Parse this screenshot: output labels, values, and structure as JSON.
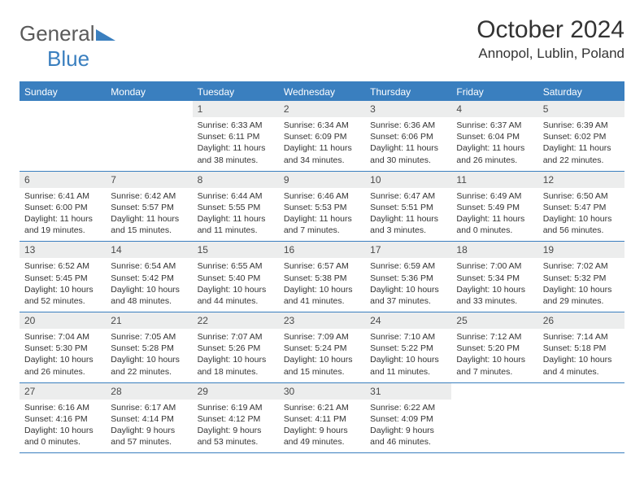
{
  "brand": {
    "part1": "General",
    "part2": "Blue"
  },
  "title": "October 2024",
  "location": "Annopol, Lublin, Poland",
  "colors": {
    "accent": "#3a7fbf",
    "header_row_bg": "#3a7fbf",
    "header_row_text": "#ffffff",
    "daynum_bg": "#eceded",
    "text": "#333333",
    "logo_gray": "#5a5a5a"
  },
  "day_labels": [
    "Sunday",
    "Monday",
    "Tuesday",
    "Wednesday",
    "Thursday",
    "Friday",
    "Saturday"
  ],
  "weeks": [
    [
      null,
      null,
      {
        "n": "1",
        "sr": "6:33 AM",
        "ss": "6:11 PM",
        "dl": "11 hours and 38 minutes."
      },
      {
        "n": "2",
        "sr": "6:34 AM",
        "ss": "6:09 PM",
        "dl": "11 hours and 34 minutes."
      },
      {
        "n": "3",
        "sr": "6:36 AM",
        "ss": "6:06 PM",
        "dl": "11 hours and 30 minutes."
      },
      {
        "n": "4",
        "sr": "6:37 AM",
        "ss": "6:04 PM",
        "dl": "11 hours and 26 minutes."
      },
      {
        "n": "5",
        "sr": "6:39 AM",
        "ss": "6:02 PM",
        "dl": "11 hours and 22 minutes."
      }
    ],
    [
      {
        "n": "6",
        "sr": "6:41 AM",
        "ss": "6:00 PM",
        "dl": "11 hours and 19 minutes."
      },
      {
        "n": "7",
        "sr": "6:42 AM",
        "ss": "5:57 PM",
        "dl": "11 hours and 15 minutes."
      },
      {
        "n": "8",
        "sr": "6:44 AM",
        "ss": "5:55 PM",
        "dl": "11 hours and 11 minutes."
      },
      {
        "n": "9",
        "sr": "6:46 AM",
        "ss": "5:53 PM",
        "dl": "11 hours and 7 minutes."
      },
      {
        "n": "10",
        "sr": "6:47 AM",
        "ss": "5:51 PM",
        "dl": "11 hours and 3 minutes."
      },
      {
        "n": "11",
        "sr": "6:49 AM",
        "ss": "5:49 PM",
        "dl": "11 hours and 0 minutes."
      },
      {
        "n": "12",
        "sr": "6:50 AM",
        "ss": "5:47 PM",
        "dl": "10 hours and 56 minutes."
      }
    ],
    [
      {
        "n": "13",
        "sr": "6:52 AM",
        "ss": "5:45 PM",
        "dl": "10 hours and 52 minutes."
      },
      {
        "n": "14",
        "sr": "6:54 AM",
        "ss": "5:42 PM",
        "dl": "10 hours and 48 minutes."
      },
      {
        "n": "15",
        "sr": "6:55 AM",
        "ss": "5:40 PM",
        "dl": "10 hours and 44 minutes."
      },
      {
        "n": "16",
        "sr": "6:57 AM",
        "ss": "5:38 PM",
        "dl": "10 hours and 41 minutes."
      },
      {
        "n": "17",
        "sr": "6:59 AM",
        "ss": "5:36 PM",
        "dl": "10 hours and 37 minutes."
      },
      {
        "n": "18",
        "sr": "7:00 AM",
        "ss": "5:34 PM",
        "dl": "10 hours and 33 minutes."
      },
      {
        "n": "19",
        "sr": "7:02 AM",
        "ss": "5:32 PM",
        "dl": "10 hours and 29 minutes."
      }
    ],
    [
      {
        "n": "20",
        "sr": "7:04 AM",
        "ss": "5:30 PM",
        "dl": "10 hours and 26 minutes."
      },
      {
        "n": "21",
        "sr": "7:05 AM",
        "ss": "5:28 PM",
        "dl": "10 hours and 22 minutes."
      },
      {
        "n": "22",
        "sr": "7:07 AM",
        "ss": "5:26 PM",
        "dl": "10 hours and 18 minutes."
      },
      {
        "n": "23",
        "sr": "7:09 AM",
        "ss": "5:24 PM",
        "dl": "10 hours and 15 minutes."
      },
      {
        "n": "24",
        "sr": "7:10 AM",
        "ss": "5:22 PM",
        "dl": "10 hours and 11 minutes."
      },
      {
        "n": "25",
        "sr": "7:12 AM",
        "ss": "5:20 PM",
        "dl": "10 hours and 7 minutes."
      },
      {
        "n": "26",
        "sr": "7:14 AM",
        "ss": "5:18 PM",
        "dl": "10 hours and 4 minutes."
      }
    ],
    [
      {
        "n": "27",
        "sr": "6:16 AM",
        "ss": "4:16 PM",
        "dl": "10 hours and 0 minutes."
      },
      {
        "n": "28",
        "sr": "6:17 AM",
        "ss": "4:14 PM",
        "dl": "9 hours and 57 minutes."
      },
      {
        "n": "29",
        "sr": "6:19 AM",
        "ss": "4:12 PM",
        "dl": "9 hours and 53 minutes."
      },
      {
        "n": "30",
        "sr": "6:21 AM",
        "ss": "4:11 PM",
        "dl": "9 hours and 49 minutes."
      },
      {
        "n": "31",
        "sr": "6:22 AM",
        "ss": "4:09 PM",
        "dl": "9 hours and 46 minutes."
      },
      null,
      null
    ]
  ],
  "labels": {
    "sunrise": "Sunrise: ",
    "sunset": "Sunset: ",
    "daylight": "Daylight: "
  }
}
